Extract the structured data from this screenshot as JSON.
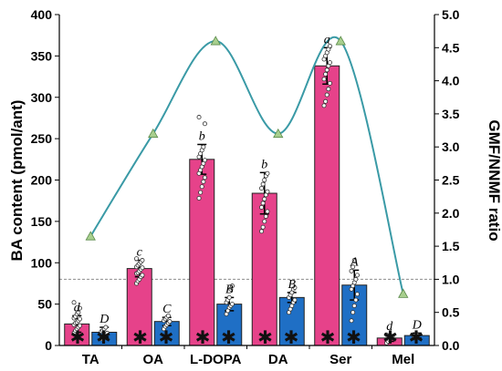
{
  "chart_data": {
    "type": "bar",
    "categories": [
      "TA",
      "OA",
      "L-DOPA",
      "DA",
      "Ser",
      "Mel"
    ],
    "series": [
      {
        "values": [
          26,
          93,
          225,
          184,
          338,
          9
        ],
        "errors": [
          10,
          10,
          18,
          25,
          22,
          4
        ],
        "color": "#e6428a",
        "letters": [
          "d",
          "c",
          "b",
          "b",
          "a",
          "d"
        ],
        "points": [
          [
            15,
            18,
            20,
            22,
            24,
            25,
            27,
            28,
            30,
            32,
            33,
            35,
            38,
            40,
            45,
            52
          ],
          [
            75,
            78,
            80,
            83,
            85,
            87,
            88,
            90,
            92,
            94,
            95,
            97,
            99,
            101,
            103,
            105
          ],
          [
            178,
            185,
            192,
            198,
            203,
            208,
            212,
            216,
            220,
            224,
            228,
            232,
            236,
            240,
            268,
            276
          ],
          [
            138,
            143,
            150,
            156,
            162,
            167,
            172,
            177,
            182,
            186,
            190,
            195,
            200,
            205,
            208
          ],
          [
            290,
            295,
            303,
            310,
            317,
            322,
            328,
            333,
            338,
            342,
            346,
            350,
            354,
            358,
            362
          ],
          [
            3,
            5,
            7,
            9,
            11,
            13
          ]
        ]
      },
      {
        "values": [
          16,
          29,
          50,
          58,
          73,
          12
        ],
        "errors": [
          6,
          5,
          8,
          6,
          18,
          3
        ],
        "color": "#1f6fc5",
        "letters": [
          "D",
          "C",
          "B",
          "B",
          "A",
          "D"
        ],
        "points": [
          [
            8,
            10,
            12,
            14,
            15,
            17,
            18,
            20,
            22
          ],
          [
            20,
            23,
            25,
            27,
            29,
            30,
            32,
            34,
            36
          ],
          [
            38,
            42,
            46,
            48,
            50,
            52,
            55,
            58,
            68,
            72
          ],
          [
            40,
            44,
            48,
            52,
            55,
            58,
            61,
            64,
            68,
            70
          ],
          [
            30,
            40,
            48,
            55,
            62,
            68,
            72,
            76,
            80,
            85,
            90,
            95,
            103
          ],
          [
            9,
            11,
            13
          ]
        ]
      }
    ],
    "ratio": {
      "values": [
        1.65,
        3.2,
        4.6,
        3.2,
        4.6,
        0.78
      ],
      "color": "#3a9aa6",
      "marker_color": "#a8cf8e"
    },
    "reference_line_right": 1.0,
    "ylabel": "BA content (pmol/ant)",
    "ylabel_right": "GMF/NNMF ratio",
    "ylim": [
      0,
      400
    ],
    "ylim_right": [
      0,
      5.0
    ],
    "yticks": [
      "0",
      "50",
      "100",
      "150",
      "200",
      "250",
      "300",
      "350",
      "400"
    ],
    "yticks_right": [
      "0.0",
      "0.5",
      "1.0",
      "1.5",
      "2.0",
      "2.5",
      "3.0",
      "3.5",
      "4.0",
      "4.5",
      "5.0"
    ],
    "marker_symbol": "✱"
  }
}
